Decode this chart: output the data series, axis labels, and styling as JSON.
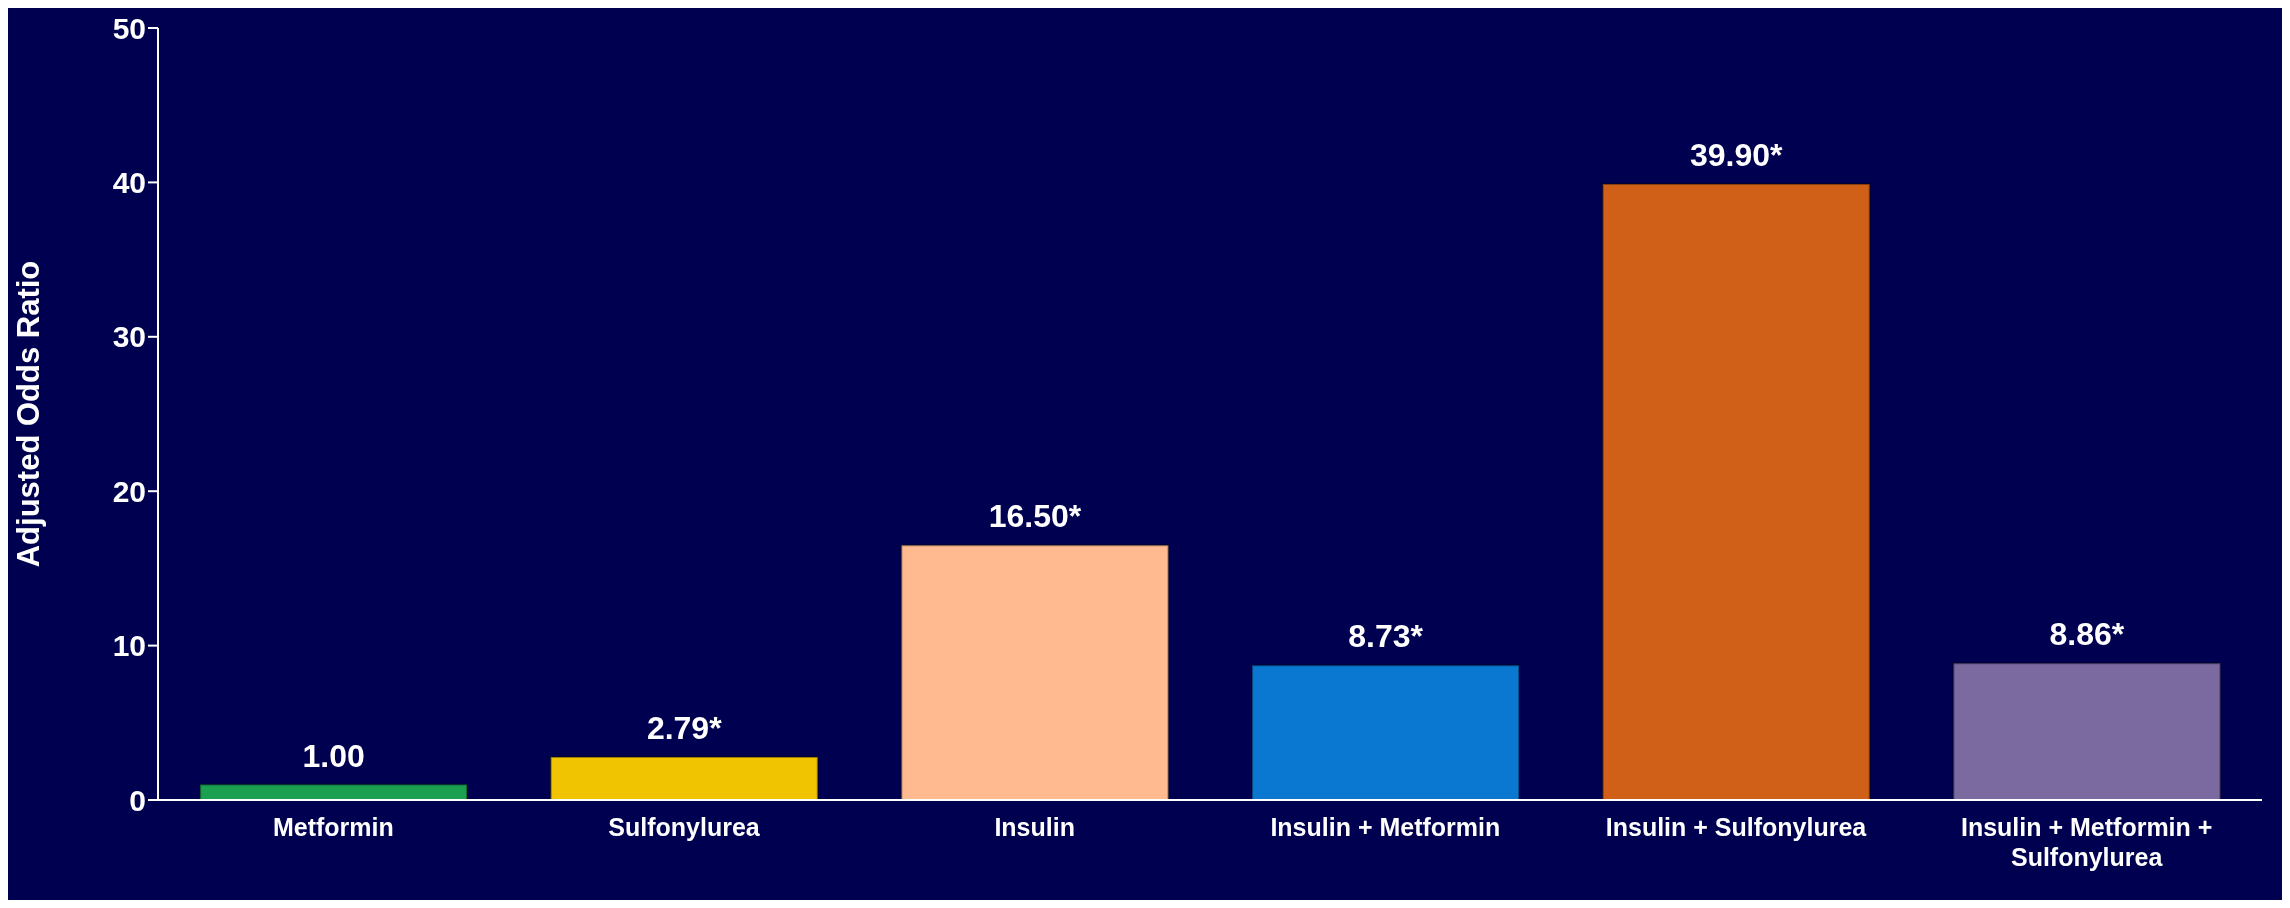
{
  "chart_data": {
    "type": "bar",
    "ylabel": "Adjusted Odds Ratio",
    "categories": [
      "Metformin",
      "Sulfonylurea",
      "Insulin",
      "Insulin + Metformin",
      "Insulin + Sulfonylurea",
      "Insulin + Metformin + Sulfonylurea"
    ],
    "values": [
      1.0,
      2.79,
      16.5,
      8.73,
      39.9,
      8.86
    ],
    "colors": [
      "#1aa050",
      "#f0c400",
      "#ffbb8f",
      "#0a78d0",
      "#d06018",
      "#7a6aa0"
    ],
    "value_labels": [
      "1.00",
      "2.79*",
      "16.50*",
      "8.73*",
      "39.90*",
      "8.86*"
    ],
    "ylim": [
      0,
      50
    ],
    "yticks": [
      0,
      10,
      20,
      30,
      40,
      50
    ],
    "grid": false,
    "legend": false
  }
}
